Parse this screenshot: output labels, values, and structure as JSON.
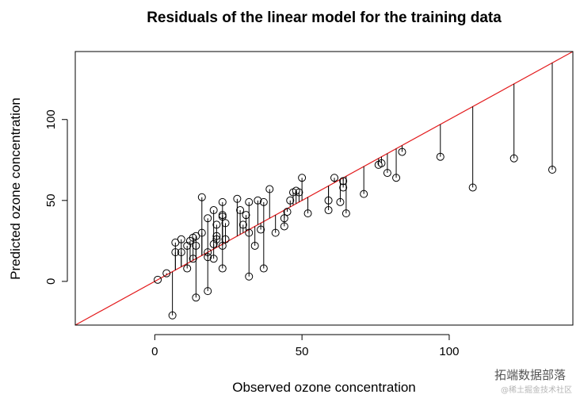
{
  "chart_data": {
    "type": "scatter",
    "title": "Residuals of the linear model for the training data",
    "xlabel": "Observed ozone concentration",
    "ylabel": "Predicted ozone concentration",
    "xlim": [
      -27,
      142
    ],
    "ylim": [
      -27,
      142
    ],
    "xticks": [
      0,
      50,
      100
    ],
    "yticks": [
      0,
      50,
      100
    ],
    "reference_line": {
      "slope": 1,
      "intercept": 0,
      "color": "#e31a1c"
    },
    "point_color": "#000000",
    "points": [
      {
        "x": 1,
        "y": 1
      },
      {
        "x": 4,
        "y": 5
      },
      {
        "x": 6,
        "y": -21
      },
      {
        "x": 7,
        "y": 24
      },
      {
        "x": 7,
        "y": 18
      },
      {
        "x": 9,
        "y": 26
      },
      {
        "x": 9,
        "y": 18
      },
      {
        "x": 11,
        "y": 8
      },
      {
        "x": 11,
        "y": 22
      },
      {
        "x": 12,
        "y": 25
      },
      {
        "x": 13,
        "y": 14
      },
      {
        "x": 13,
        "y": 27
      },
      {
        "x": 14,
        "y": -10
      },
      {
        "x": 14,
        "y": 22
      },
      {
        "x": 14,
        "y": 28
      },
      {
        "x": 16,
        "y": 52
      },
      {
        "x": 16,
        "y": 30
      },
      {
        "x": 18,
        "y": -6
      },
      {
        "x": 18,
        "y": 15
      },
      {
        "x": 18,
        "y": 18
      },
      {
        "x": 18,
        "y": 39
      },
      {
        "x": 20,
        "y": 44
      },
      {
        "x": 20,
        "y": 14
      },
      {
        "x": 20,
        "y": 23
      },
      {
        "x": 21,
        "y": 26
      },
      {
        "x": 21,
        "y": 28
      },
      {
        "x": 21,
        "y": 35
      },
      {
        "x": 23,
        "y": 8
      },
      {
        "x": 23,
        "y": 22
      },
      {
        "x": 23,
        "y": 40
      },
      {
        "x": 23,
        "y": 41
      },
      {
        "x": 23,
        "y": 49
      },
      {
        "x": 24,
        "y": 26
      },
      {
        "x": 24,
        "y": 36
      },
      {
        "x": 28,
        "y": 51
      },
      {
        "x": 29,
        "y": 44
      },
      {
        "x": 30,
        "y": 35
      },
      {
        "x": 31,
        "y": 41
      },
      {
        "x": 32,
        "y": 3
      },
      {
        "x": 32,
        "y": 30
      },
      {
        "x": 32,
        "y": 49
      },
      {
        "x": 34,
        "y": 22
      },
      {
        "x": 35,
        "y": 50
      },
      {
        "x": 36,
        "y": 32
      },
      {
        "x": 37,
        "y": 8
      },
      {
        "x": 37,
        "y": 49
      },
      {
        "x": 39,
        "y": 57
      },
      {
        "x": 41,
        "y": 30
      },
      {
        "x": 44,
        "y": 34
      },
      {
        "x": 44,
        "y": 39
      },
      {
        "x": 45,
        "y": 43
      },
      {
        "x": 46,
        "y": 50
      },
      {
        "x": 47,
        "y": 55
      },
      {
        "x": 48,
        "y": 56
      },
      {
        "x": 49,
        "y": 55
      },
      {
        "x": 50,
        "y": 64
      },
      {
        "x": 52,
        "y": 42
      },
      {
        "x": 59,
        "y": 44
      },
      {
        "x": 59,
        "y": 50
      },
      {
        "x": 61,
        "y": 64
      },
      {
        "x": 63,
        "y": 49
      },
      {
        "x": 64,
        "y": 62
      },
      {
        "x": 64,
        "y": 58
      },
      {
        "x": 65,
        "y": 42
      },
      {
        "x": 71,
        "y": 54
      },
      {
        "x": 76,
        "y": 72
      },
      {
        "x": 77,
        "y": 73
      },
      {
        "x": 79,
        "y": 67
      },
      {
        "x": 82,
        "y": 64
      },
      {
        "x": 84,
        "y": 80
      },
      {
        "x": 97,
        "y": 77
      },
      {
        "x": 108,
        "y": 58
      },
      {
        "x": 122,
        "y": 76
      },
      {
        "x": 135,
        "y": 69
      }
    ]
  },
  "watermark": {
    "brand": "拓端数据部落",
    "site": "@稀土掘金技术社区"
  }
}
